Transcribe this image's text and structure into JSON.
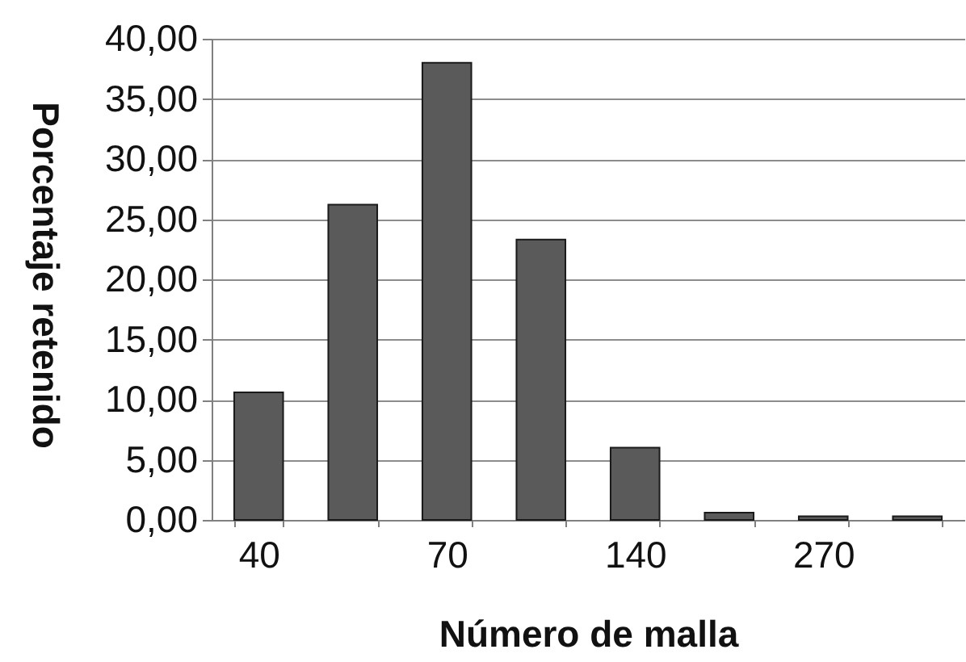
{
  "chart_data": {
    "type": "bar",
    "xlabel": "Número de malla",
    "ylabel": "Porcentaje retenido",
    "categories": [
      "40",
      null,
      "70",
      null,
      "140",
      null,
      "270",
      null
    ],
    "values": [
      10.6,
      26.2,
      38.0,
      23.3,
      6.0,
      0.6,
      0.3,
      0.3
    ],
    "color": "#5a5a5a",
    "ylim": [
      0,
      40
    ],
    "yticks": [
      {
        "value": 0,
        "label": "0,00"
      },
      {
        "value": 5,
        "label": "5,00"
      },
      {
        "value": 10,
        "label": "10,00"
      },
      {
        "value": 15,
        "label": "15,00"
      },
      {
        "value": 20,
        "label": "20,00"
      },
      {
        "value": 25,
        "label": "25,00"
      },
      {
        "value": 30,
        "label": "30,00"
      },
      {
        "value": 35,
        "label": "35,00"
      },
      {
        "value": 40,
        "label": "40,00"
      }
    ],
    "grid": "y"
  }
}
